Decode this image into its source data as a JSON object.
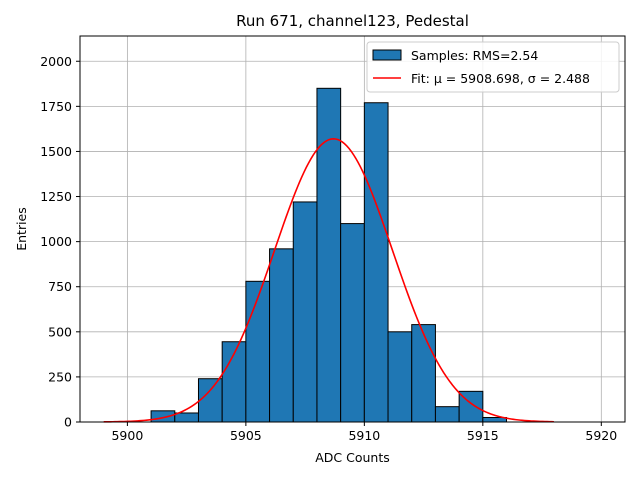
{
  "chart_data": {
    "type": "histogram",
    "title": "Run 671, channel123, Pedestal",
    "xlabel": "ADC Counts",
    "ylabel": "Entries",
    "xlim": [
      5898,
      5921
    ],
    "ylim": [
      0,
      2140
    ],
    "x_ticks": [
      5900,
      5905,
      5910,
      5915,
      5920
    ],
    "y_ticks": [
      0,
      250,
      500,
      750,
      1000,
      1250,
      1500,
      1750,
      2000
    ],
    "x_tick_labels": [
      "5900",
      "5905",
      "5910",
      "5915",
      "5920"
    ],
    "y_tick_labels": [
      "0",
      "250",
      "500",
      "750",
      "1000",
      "1250",
      "1500",
      "1750",
      "2000"
    ],
    "grid": true,
    "legend_position": "top-right",
    "bins": {
      "edges": [
        5901,
        5902,
        5903,
        5904,
        5905,
        5906,
        5907,
        5908,
        5909,
        5910,
        5911,
        5912,
        5913,
        5914,
        5915,
        5916
      ],
      "counts": [
        62,
        50,
        240,
        445,
        780,
        960,
        1220,
        1850,
        1100,
        1770,
        500,
        540,
        85,
        170,
        25
      ]
    },
    "fit": {
      "mu": 5908.698,
      "sigma": 2.488,
      "amplitude": 1570,
      "x_range": [
        5899,
        5918
      ]
    },
    "series": [
      {
        "name": "Samples: RMS=2.54",
        "kind": "histogram",
        "color": "#1f77b4"
      },
      {
        "name": "Fit: μ = 5908.698, σ = 2.488",
        "kind": "line",
        "color": "#ff0000"
      }
    ]
  }
}
